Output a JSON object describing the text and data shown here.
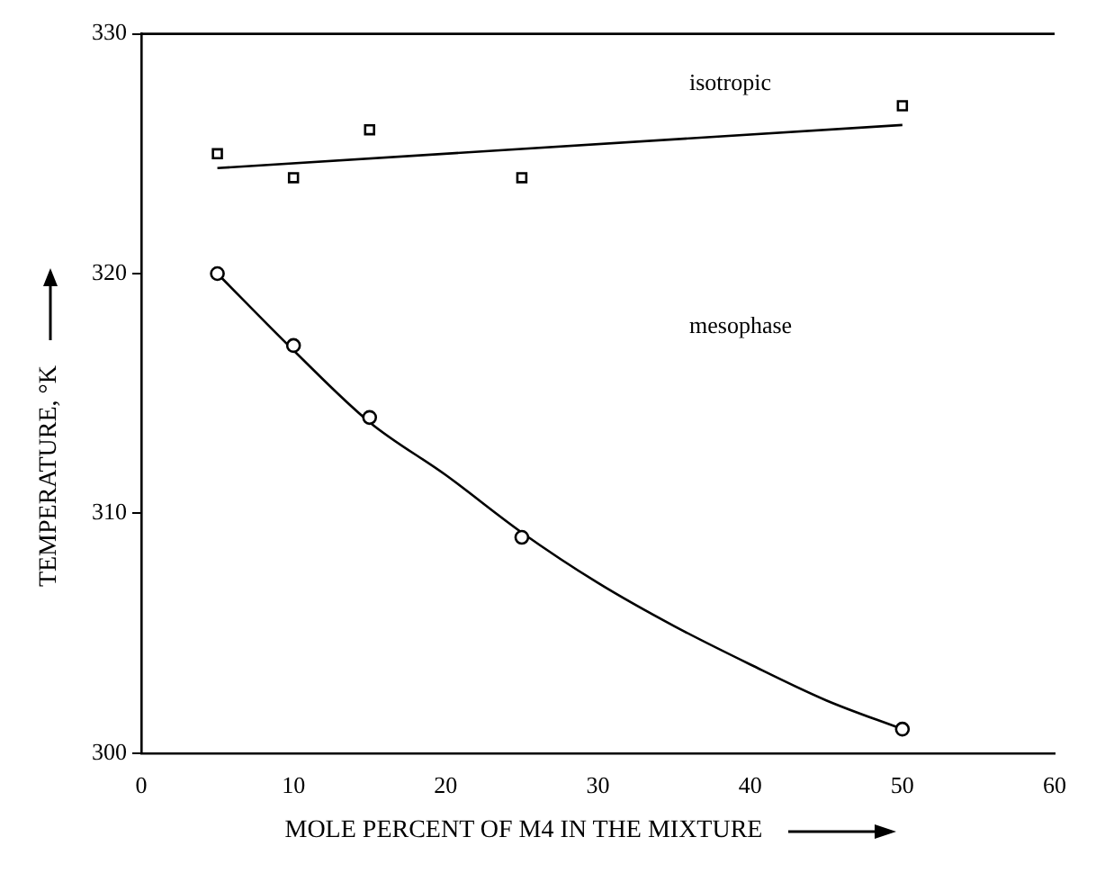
{
  "chart_data": {
    "type": "scatter",
    "xlabel": "MOLE PERCENT OF M4  IN THE MIXTURE",
    "ylabel": "TEMPERATURE, °K",
    "xlim": [
      0,
      60
    ],
    "xticks": [
      0,
      10,
      20,
      30,
      40,
      50,
      60
    ],
    "ylim": [
      300,
      330
    ],
    "yticks": [
      300,
      310,
      320,
      330
    ],
    "grid": false,
    "legend": false,
    "series": [
      {
        "type": "scatter",
        "marker": "square",
        "color": "#000000",
        "x": [
          5,
          10,
          15,
          25,
          50
        ],
        "values": [
          325,
          324,
          326,
          324,
          327
        ]
      },
      {
        "type": "scatter",
        "marker": "circle",
        "color": "#000000",
        "x": [
          5,
          10,
          15,
          25,
          50
        ],
        "values": [
          320,
          317,
          314,
          309,
          301
        ]
      },
      {
        "type": "line",
        "marker": "none",
        "color": "#000000",
        "x": [
          5,
          50
        ],
        "values": [
          324.4,
          326.2
        ]
      },
      {
        "type": "line",
        "marker": "none",
        "color": "#000000",
        "x": [
          5,
          10,
          15,
          20,
          25,
          30,
          35,
          40,
          45,
          50
        ],
        "values": [
          320,
          316.8,
          313.8,
          311.6,
          309.2,
          307.1,
          305.3,
          303.7,
          302.2,
          301
        ]
      }
    ],
    "annotations": [
      "isotropic",
      "mesophase"
    ]
  }
}
